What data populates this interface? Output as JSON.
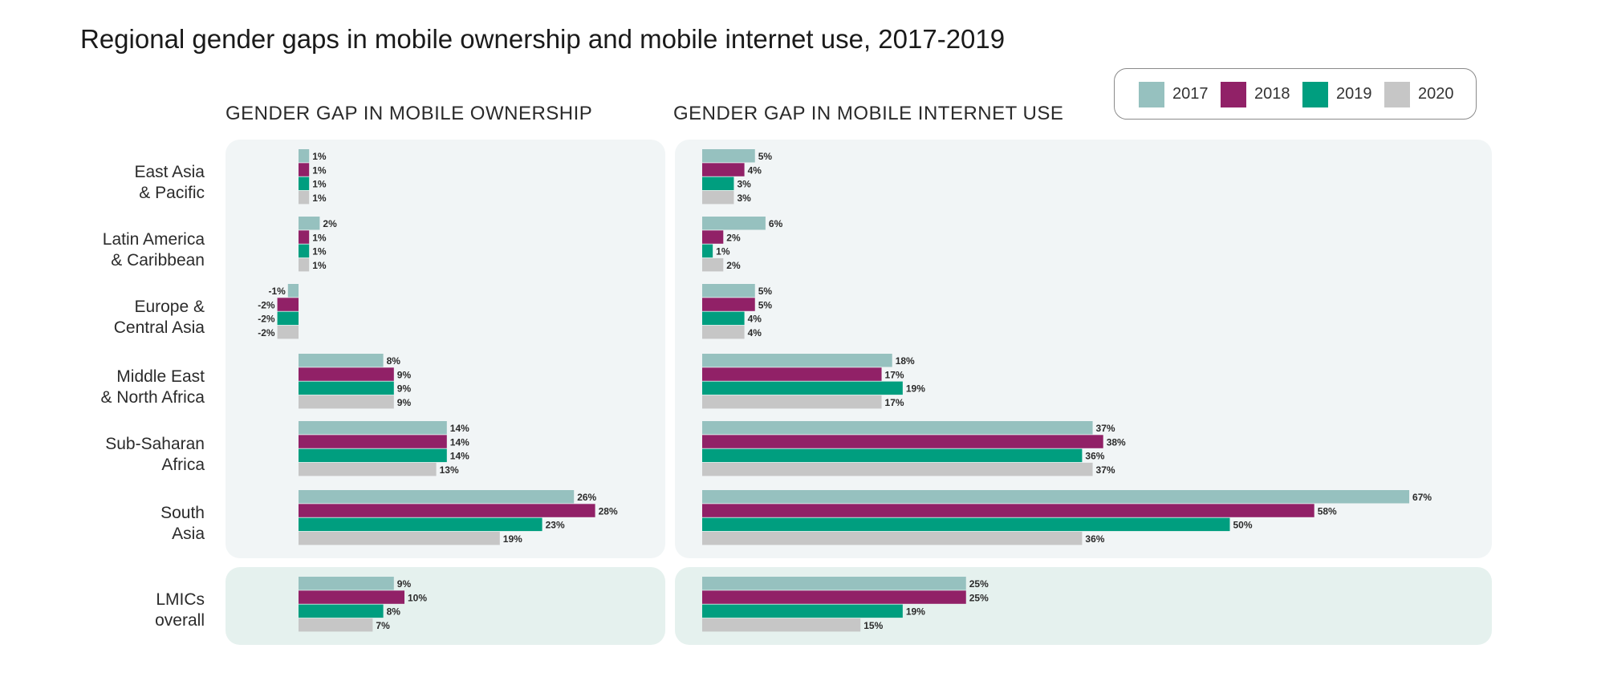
{
  "title": "Regional gender gaps in mobile ownership and mobile internet use, 2017-2019",
  "legend": [
    {
      "label": "2017",
      "color": "#96c1bf"
    },
    {
      "label": "2018",
      "color": "#912167"
    },
    {
      "label": "2019",
      "color": "#009e7f"
    },
    {
      "label": "2020",
      "color": "#c6c6c6"
    }
  ],
  "chart_data": [
    {
      "type": "bar",
      "orientation": "horizontal",
      "title": "GENDER GAP IN MOBILE OWNERSHIP",
      "categories": [
        "East Asia\n& Pacific",
        "Latin America\n& Caribbean",
        "Europe &\nCentral Asia",
        "Middle East\n& North Africa",
        "Sub-Saharan\nAfrica",
        "South\nAsia",
        "LMICs\noverall"
      ],
      "series": [
        {
          "name": "2017",
          "values": [
            1,
            2,
            -1,
            8,
            14,
            26,
            9
          ],
          "labels": [
            "1%",
            "2%",
            "-1%",
            "8%",
            "14%",
            "26%",
            "9%"
          ]
        },
        {
          "name": "2018",
          "values": [
            1,
            1,
            -2,
            9,
            14,
            28,
            10
          ],
          "labels": [
            "1%",
            "1%",
            "-2%",
            "9%",
            "14%",
            "28%",
            "10%"
          ]
        },
        {
          "name": "2019",
          "values": [
            1,
            1,
            -2,
            9,
            14,
            23,
            8
          ],
          "labels": [
            "1%",
            "1%",
            "-2%",
            "9%",
            "14%",
            "23%",
            "8%"
          ]
        },
        {
          "name": "2020",
          "values": [
            1,
            1,
            -2,
            9,
            13,
            19,
            7
          ],
          "labels": [
            "1%",
            "1%",
            "-2%",
            "9%",
            "13%",
            "19%",
            "7%"
          ]
        }
      ]
    },
    {
      "type": "bar",
      "orientation": "horizontal",
      "title": "GENDER GAP IN MOBILE INTERNET USE",
      "categories": [
        "East Asia\n& Pacific",
        "Latin America\n& Caribbean",
        "Europe &\nCentral Asia",
        "Middle East\n& North Africa",
        "Sub-Saharan\nAfrica",
        "South\nAsia",
        "LMICs\noverall"
      ],
      "series": [
        {
          "name": "2017",
          "values": [
            5,
            6,
            5,
            18,
            37,
            67,
            25
          ],
          "labels": [
            "5%",
            "6%",
            "5%",
            "18%",
            "37%",
            "67%",
            "25%"
          ]
        },
        {
          "name": "2018",
          "values": [
            4,
            2,
            5,
            17,
            38,
            58,
            25
          ],
          "labels": [
            "4%",
            "2%",
            "5%",
            "17%",
            "38%",
            "58%",
            "25%"
          ]
        },
        {
          "name": "2019",
          "values": [
            3,
            1,
            4,
            19,
            36,
            50,
            19
          ],
          "labels": [
            "3%",
            "1%",
            "4%",
            "19%",
            "36%",
            "50%",
            "19%"
          ]
        },
        {
          "name": "2020",
          "values": [
            3,
            2,
            4,
            17,
            37,
            36,
            15
          ],
          "labels": [
            "3%",
            "2%",
            "4%",
            "17%",
            "37%",
            "36%",
            "15%"
          ]
        }
      ]
    }
  ]
}
